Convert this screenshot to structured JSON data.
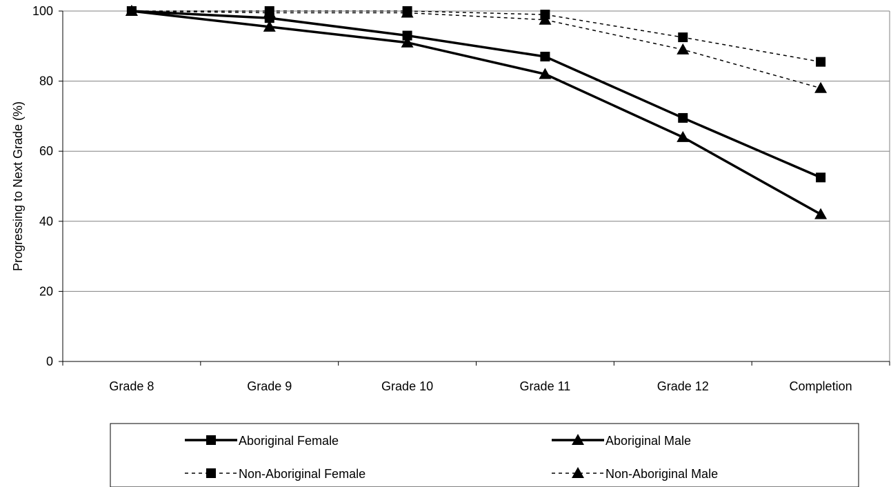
{
  "chart_data": {
    "type": "line",
    "title": "",
    "xlabel": "",
    "ylabel": "Progressing to Next Grade (%)",
    "ylim": [
      0,
      100
    ],
    "yticks": [
      0,
      20,
      40,
      60,
      80,
      100
    ],
    "grid": "horizontal",
    "legend_position": "bottom",
    "categories": [
      "Grade 8",
      "Grade 9",
      "Grade 10",
      "Grade 11",
      "Grade 12",
      "Completion"
    ],
    "series": [
      {
        "name": "Aboriginal Female",
        "marker": "square",
        "line_style": "solid",
        "color": "#000000",
        "values": [
          100,
          98,
          93,
          87,
          69.5,
          52.5
        ]
      },
      {
        "name": "Aboriginal Male",
        "marker": "triangle",
        "line_style": "solid",
        "color": "#000000",
        "values": [
          100,
          95.5,
          91,
          82,
          64,
          42
        ]
      },
      {
        "name": "Non-Aboriginal Female",
        "marker": "square",
        "line_style": "dashed",
        "color": "#000000",
        "values": [
          100,
          100,
          100,
          99,
          92.5,
          85.5
        ]
      },
      {
        "name": "Non-Aboriginal Male",
        "marker": "triangle",
        "line_style": "dashed",
        "color": "#000000",
        "values": [
          100,
          99.5,
          99.5,
          97.5,
          89,
          78
        ]
      }
    ]
  }
}
